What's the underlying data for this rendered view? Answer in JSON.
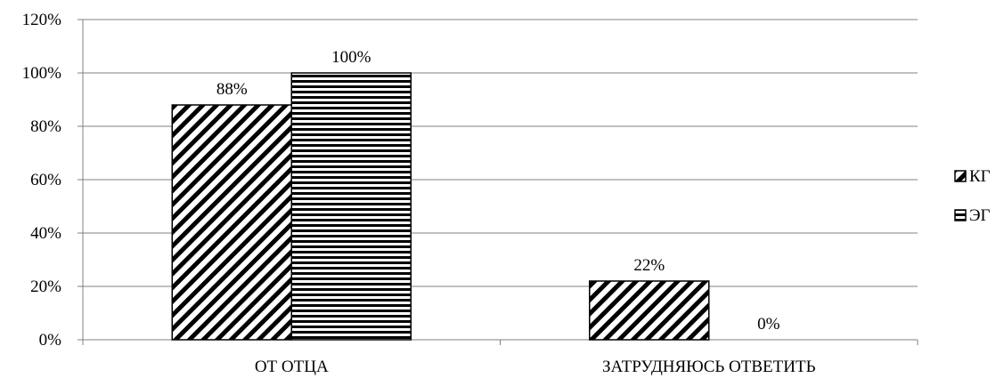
{
  "chart_data": {
    "type": "bar",
    "categories": [
      "ОТ ОТЦА",
      "ЗАТРУДНЯЮСЬ ОТВЕТИТЬ"
    ],
    "series": [
      {
        "name": "КГ",
        "values": [
          88,
          22
        ],
        "labels": [
          "88%",
          "22%"
        ],
        "pattern": "diagonal-hatch"
      },
      {
        "name": "ЭГ",
        "values": [
          100,
          0
        ],
        "labels": [
          "100%",
          "0%"
        ],
        "pattern": "horizontal-lines"
      }
    ],
    "ylim": [
      0,
      120
    ],
    "yticks": [
      0,
      20,
      40,
      60,
      80,
      100,
      120
    ],
    "ytick_labels": [
      "0%",
      "20%",
      "40%",
      "60%",
      "80%",
      "100%",
      "120%"
    ],
    "title": "",
    "xlabel": "",
    "ylabel": "",
    "grid": true,
    "legend_position": "right"
  }
}
